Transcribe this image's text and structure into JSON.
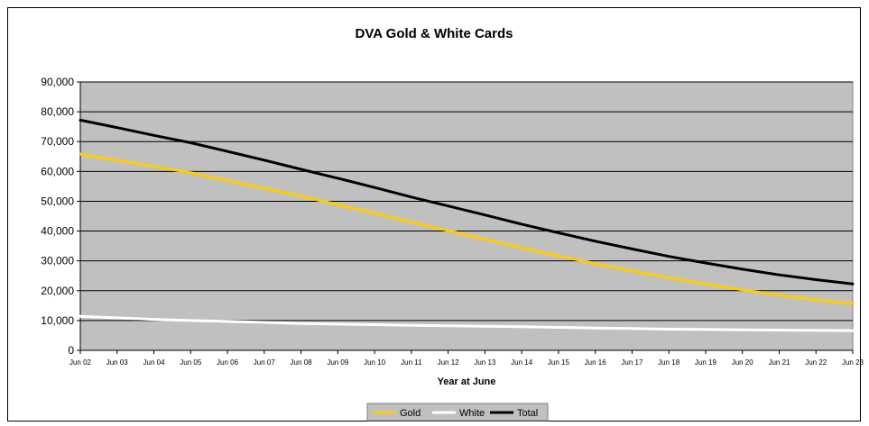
{
  "chart_data": {
    "type": "line",
    "title": "DVA Gold & White Cards",
    "xlabel": "Year at June",
    "ylabel": "",
    "ylim": [
      0,
      90000
    ],
    "yticks": [
      0,
      10000,
      20000,
      30000,
      40000,
      50000,
      60000,
      70000,
      80000,
      90000
    ],
    "ytick_labels": [
      "0",
      "10,000",
      "20,000",
      "30,000",
      "40,000",
      "50,000",
      "60,000",
      "70,000",
      "80,000",
      "90,000"
    ],
    "grid": true,
    "legend_position": "bottom",
    "plot_background": "#c0c0c0",
    "categories": [
      "Jun 02",
      "Jun 03",
      "Jun 04",
      "Jun 05",
      "Jun 06",
      "Jun 07",
      "Jun 08",
      "Jun 09",
      "Jun 10",
      "Jun 11",
      "Jun 12",
      "Jun 13",
      "Jun 14",
      "Jun 15",
      "Jun 16",
      "Jun 17",
      "Jun 18",
      "Jun 19",
      "Jun 20",
      "Jun 21",
      "Jun 22",
      "Jun 23"
    ],
    "series": [
      {
        "name": "Gold",
        "color": "#ffcc00",
        "values": [
          65800,
          63800,
          61700,
          59600,
          57000,
          54400,
          51700,
          48900,
          46000,
          43000,
          40200,
          37300,
          34400,
          31700,
          29100,
          26700,
          24400,
          22300,
          20300,
          18500,
          17000,
          15700
        ]
      },
      {
        "name": "White",
        "color": "#ffffff",
        "values": [
          11400,
          10900,
          10400,
          10000,
          9700,
          9400,
          9000,
          8800,
          8600,
          8400,
          8200,
          8100,
          7900,
          7700,
          7500,
          7300,
          7100,
          7000,
          6900,
          6800,
          6700,
          6600
        ]
      },
      {
        "name": "Total",
        "color": "#000000",
        "values": [
          77200,
          74700,
          72100,
          69600,
          66700,
          63800,
          60700,
          57700,
          54600,
          51400,
          48400,
          45400,
          42300,
          39400,
          36600,
          34000,
          31500,
          29300,
          27200,
          25300,
          23700,
          22300
        ]
      }
    ]
  }
}
